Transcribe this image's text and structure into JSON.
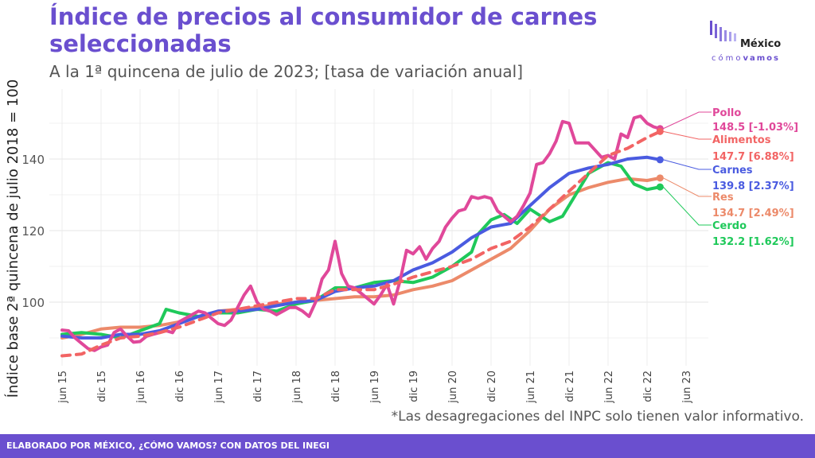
{
  "header": {
    "title": "Índice de precios al consumidor de carnes seleccionadas",
    "subtitle": "A la 1ª quincena de julio de 2023; [tasa de variación anual]"
  },
  "logo": {
    "word": "México",
    "sub_light": "cómo",
    "sub_bold": "vamos"
  },
  "note": "*Las desagregaciones del INPC solo tienen valor informativo.",
  "footer": "ELABORADO POR MÉXICO, ¿CÓMO VAMOS? CON DATOS DEL INEGI",
  "chart_data": {
    "type": "line",
    "title": "Índice de precios al consumidor de carnes seleccionadas",
    "ylabel": "Índice base 2ª quincena de julio 2018 = 100",
    "xlabel": "",
    "ylim": [
      83,
      153
    ],
    "yticks": [
      100,
      120,
      140
    ],
    "x_ticklabels": [
      "jun 15",
      "dic 15",
      "jun 16",
      "dic 16",
      "jun 17",
      "dic 17",
      "jun 18",
      "dic 18",
      "jun 19",
      "dic 19",
      "jun 20",
      "dic 20",
      "jun 21",
      "dic 21",
      "jun 22",
      "dic 22",
      "jun 23"
    ],
    "grid": true,
    "x_note": "x values are months since June 2015 (0 = jun 15, 96 = jun 23)",
    "series": [
      {
        "name": "Pollo",
        "color": "#e0489a",
        "dashed": false,
        "label": "148.5 [-1.03%]",
        "points": [
          [
            0,
            92.2
          ],
          [
            1,
            92
          ],
          [
            2,
            90
          ],
          [
            3,
            88.5
          ],
          [
            4,
            87
          ],
          [
            5,
            86.5
          ],
          [
            6,
            87.5
          ],
          [
            7,
            88
          ],
          [
            8,
            91.5
          ],
          [
            9,
            92.5
          ],
          [
            10,
            90.5
          ],
          [
            11,
            88.8
          ],
          [
            12,
            89
          ],
          [
            13,
            90.5
          ],
          [
            14,
            91
          ],
          [
            15,
            91.5
          ],
          [
            16,
            92
          ],
          [
            17,
            91.5
          ],
          [
            18,
            94.5
          ],
          [
            19,
            95.5
          ],
          [
            20,
            96.5
          ],
          [
            21,
            97.5
          ],
          [
            22,
            97
          ],
          [
            23,
            95.5
          ],
          [
            24,
            94
          ],
          [
            25,
            93.5
          ],
          [
            26,
            95
          ],
          [
            27,
            98.5
          ],
          [
            28,
            102
          ],
          [
            29,
            104.5
          ],
          [
            30,
            100
          ],
          [
            31,
            98
          ],
          [
            32,
            97.5
          ],
          [
            33,
            96.5
          ],
          [
            34,
            97.5
          ],
          [
            35,
            98.5
          ],
          [
            36,
            98.5
          ],
          [
            37,
            97.5
          ],
          [
            38,
            96
          ],
          [
            39,
            100
          ],
          [
            40,
            106.5
          ],
          [
            41,
            109
          ],
          [
            42,
            117
          ],
          [
            43,
            108
          ],
          [
            44,
            104.5
          ],
          [
            45,
            104
          ],
          [
            46,
            102.5
          ],
          [
            47,
            101
          ],
          [
            48,
            99.5
          ],
          [
            49,
            102
          ],
          [
            50,
            105
          ],
          [
            51,
            99.5
          ],
          [
            52,
            106
          ],
          [
            53,
            114.5
          ],
          [
            54,
            113.5
          ],
          [
            55,
            115.5
          ],
          [
            56,
            112
          ],
          [
            57,
            115
          ],
          [
            58,
            117
          ],
          [
            59,
            121
          ],
          [
            60,
            123.5
          ],
          [
            61,
            125.5
          ],
          [
            62,
            126
          ],
          [
            63,
            129.5
          ],
          [
            64,
            129
          ],
          [
            65,
            129.5
          ],
          [
            66,
            129
          ],
          [
            67,
            125.5
          ],
          [
            68,
            124
          ],
          [
            69,
            122.5
          ],
          [
            70,
            124
          ],
          [
            71,
            127
          ],
          [
            72,
            130.5
          ],
          [
            73,
            138.5
          ],
          [
            74,
            139
          ],
          [
            75,
            141.5
          ],
          [
            76,
            145
          ],
          [
            77,
            150.5
          ],
          [
            78,
            150
          ],
          [
            79,
            144.5
          ],
          [
            80,
            144.5
          ],
          [
            81,
            144.5
          ],
          [
            82,
            142.5
          ],
          [
            83,
            140.5
          ],
          [
            84,
            141
          ],
          [
            85,
            140
          ],
          [
            86,
            147
          ],
          [
            87,
            146
          ],
          [
            88,
            151.5
          ],
          [
            89,
            152
          ],
          [
            90,
            150
          ],
          [
            91,
            149
          ],
          [
            92,
            148.5
          ]
        ]
      },
      {
        "name": "Alimentos",
        "color": "#f26464",
        "dashed": true,
        "label": "147.7 [6.88%]",
        "points": [
          [
            0,
            85
          ],
          [
            3,
            85.5
          ],
          [
            6,
            88
          ],
          [
            9,
            90
          ],
          [
            12,
            90.5
          ],
          [
            15,
            91.5
          ],
          [
            18,
            93
          ],
          [
            21,
            95
          ],
          [
            24,
            97
          ],
          [
            27,
            98
          ],
          [
            30,
            99
          ],
          [
            33,
            100
          ],
          [
            36,
            101
          ],
          [
            39,
            101
          ],
          [
            42,
            103.5
          ],
          [
            45,
            103.5
          ],
          [
            48,
            103.5
          ],
          [
            51,
            105
          ],
          [
            54,
            107
          ],
          [
            57,
            108.5
          ],
          [
            60,
            110
          ],
          [
            63,
            112
          ],
          [
            66,
            115
          ],
          [
            69,
            117
          ],
          [
            72,
            121
          ],
          [
            75,
            126
          ],
          [
            78,
            131
          ],
          [
            81,
            136
          ],
          [
            84,
            141
          ],
          [
            87,
            143
          ],
          [
            90,
            146
          ],
          [
            92,
            147.7
          ]
        ]
      },
      {
        "name": "Carnes",
        "color": "#4a5be0",
        "dashed": false,
        "label": "139.8 [2.37%]",
        "points": [
          [
            0,
            90.5
          ],
          [
            3,
            90
          ],
          [
            6,
            90
          ],
          [
            9,
            91
          ],
          [
            12,
            91
          ],
          [
            15,
            92
          ],
          [
            18,
            94
          ],
          [
            21,
            96
          ],
          [
            24,
            97.5
          ],
          [
            27,
            97.5
          ],
          [
            30,
            98
          ],
          [
            33,
            99
          ],
          [
            36,
            100
          ],
          [
            39,
            100.5
          ],
          [
            42,
            103
          ],
          [
            45,
            104
          ],
          [
            48,
            104.5
          ],
          [
            51,
            106
          ],
          [
            54,
            109
          ],
          [
            57,
            111
          ],
          [
            60,
            114
          ],
          [
            63,
            118
          ],
          [
            66,
            121
          ],
          [
            69,
            122
          ],
          [
            72,
            127
          ],
          [
            75,
            132
          ],
          [
            78,
            136
          ],
          [
            81,
            137.5
          ],
          [
            84,
            138.5
          ],
          [
            87,
            140
          ],
          [
            90,
            140.5
          ],
          [
            92,
            139.8
          ]
        ]
      },
      {
        "name": "Res",
        "color": "#ec8a6a",
        "dashed": false,
        "label": "134.7 [2.49%]",
        "points": [
          [
            0,
            90
          ],
          [
            3,
            91
          ],
          [
            6,
            92.5
          ],
          [
            9,
            93
          ],
          [
            12,
            93
          ],
          [
            15,
            93.5
          ],
          [
            18,
            94.5
          ],
          [
            21,
            96
          ],
          [
            24,
            97.5
          ],
          [
            27,
            98
          ],
          [
            30,
            98.5
          ],
          [
            33,
            99.5
          ],
          [
            36,
            100
          ],
          [
            39,
            100.5
          ],
          [
            42,
            101
          ],
          [
            45,
            101.5
          ],
          [
            48,
            101.5
          ],
          [
            51,
            102
          ],
          [
            54,
            103.5
          ],
          [
            57,
            104.5
          ],
          [
            60,
            106
          ],
          [
            63,
            109
          ],
          [
            66,
            112
          ],
          [
            69,
            115
          ],
          [
            72,
            120
          ],
          [
            75,
            126
          ],
          [
            78,
            130
          ],
          [
            81,
            132
          ],
          [
            84,
            133.5
          ],
          [
            87,
            134.5
          ],
          [
            90,
            134
          ],
          [
            92,
            134.7
          ]
        ]
      },
      {
        "name": "Cerdo",
        "color": "#1fc95a",
        "dashed": false,
        "label": "132.2 [1.62%]",
        "points": [
          [
            0,
            91
          ],
          [
            3,
            91.5
          ],
          [
            6,
            91
          ],
          [
            9,
            90
          ],
          [
            12,
            92
          ],
          [
            15,
            94
          ],
          [
            16,
            98
          ],
          [
            18,
            97
          ],
          [
            21,
            96
          ],
          [
            24,
            97
          ],
          [
            27,
            97
          ],
          [
            30,
            98
          ],
          [
            33,
            97.5
          ],
          [
            36,
            99.5
          ],
          [
            39,
            100.5
          ],
          [
            42,
            104
          ],
          [
            45,
            104
          ],
          [
            48,
            105.5
          ],
          [
            51,
            106
          ],
          [
            54,
            105.5
          ],
          [
            57,
            107
          ],
          [
            60,
            110
          ],
          [
            63,
            114
          ],
          [
            64,
            119
          ],
          [
            66,
            123
          ],
          [
            68,
            124.5
          ],
          [
            70,
            122
          ],
          [
            72,
            126
          ],
          [
            75,
            122.5
          ],
          [
            77,
            124
          ],
          [
            79,
            130
          ],
          [
            81,
            136
          ],
          [
            84,
            139
          ],
          [
            86,
            138
          ],
          [
            88,
            133
          ],
          [
            90,
            131.5
          ],
          [
            92,
            132.2
          ]
        ]
      }
    ]
  }
}
